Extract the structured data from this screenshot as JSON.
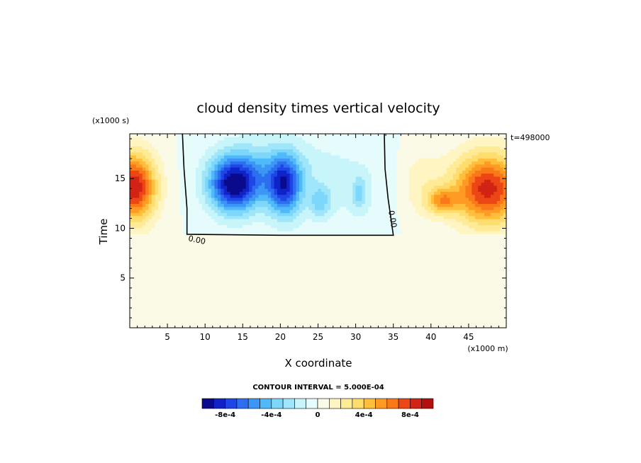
{
  "chart_data": {
    "type": "heatmap",
    "title": "cloud density times vertical velocity",
    "xlabel": "X coordinate",
    "ylabel": "Time",
    "x_units": "(x1000 m)",
    "y_units": "(x1000 s)",
    "time_label": "t=498000",
    "contour_interval_label": "CONTOUR INTERVAL = 5.000E-04",
    "xlim": [
      0,
      50
    ],
    "ylim": [
      0,
      19.5
    ],
    "x_ticks": [
      5,
      10,
      15,
      20,
      25,
      30,
      35,
      40,
      45
    ],
    "y_ticks": [
      5,
      10,
      15
    ],
    "zero_contour_labels": [
      "0.00",
      "0.00"
    ],
    "colorbar": {
      "levels": [
        -0.001,
        -0.0009,
        -0.0008,
        -0.0007,
        -0.0006,
        -0.0005,
        -0.0004,
        -0.0003,
        -0.0002,
        -0.0001,
        0,
        0.0001,
        0.0002,
        0.0003,
        0.0004,
        0.0005,
        0.0006,
        0.0007,
        0.0008,
        0.0009,
        0.001
      ],
      "colors": [
        "#0a0a8c",
        "#0f23c8",
        "#1e46e6",
        "#2d6ef0",
        "#3c96f5",
        "#50b9fa",
        "#7dd7fa",
        "#a0e6fa",
        "#c8f5fa",
        "#e6fcfc",
        "#fafae6",
        "#fff5c3",
        "#ffeb96",
        "#ffdc6e",
        "#ffbe3c",
        "#ff9b23",
        "#fa7819",
        "#eb4614",
        "#d22314",
        "#b40f0f"
      ],
      "tick_labels": [
        {
          "value": -0.0008,
          "label": "-8e-4"
        },
        {
          "value": -0.0004,
          "label": "-4e-4"
        },
        {
          "value": 0,
          "label": "0"
        },
        {
          "value": 0.0004,
          "label": "4e-4"
        },
        {
          "value": 0.0008,
          "label": "8e-4"
        }
      ]
    },
    "background_value": 0,
    "features": [
      {
        "x": 13.8,
        "y": 14.4,
        "sx": 3.3,
        "sy": 2.8,
        "amp": -0.00088
      },
      {
        "x": 20.5,
        "y": 14.3,
        "sx": 2.2,
        "sy": 3.0,
        "amp": -0.0007
      },
      {
        "x": 17.5,
        "y": 15.8,
        "sx": 6.0,
        "sy": 3.2,
        "amp": -0.00025
      },
      {
        "x": 28.0,
        "y": 14.5,
        "sx": 9.0,
        "sy": 5.0,
        "amp": -0.00012
      },
      {
        "x": 25.3,
        "y": 12.7,
        "sx": 1.3,
        "sy": 1.5,
        "amp": -0.00028
      },
      {
        "x": 30.5,
        "y": 13.5,
        "sx": 1.0,
        "sy": 1.6,
        "amp": -0.00025
      },
      {
        "x": 47.5,
        "y": 14.0,
        "sx": 4.6,
        "sy": 3.6,
        "amp": 0.00085
      },
      {
        "x": 41.5,
        "y": 12.8,
        "sx": 2.0,
        "sy": 1.3,
        "amp": 0.00045
      },
      {
        "x": 38.5,
        "y": 14.5,
        "sx": 3.2,
        "sy": 3.8,
        "amp": 0.00018
      },
      {
        "x": 0.5,
        "y": 14.2,
        "sx": 3.0,
        "sy": 3.4,
        "amp": 0.0009
      }
    ]
  }
}
